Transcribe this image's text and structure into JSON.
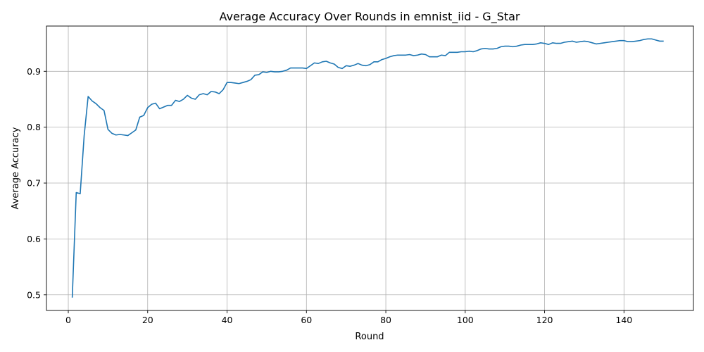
{
  "chart_data": {
    "type": "line",
    "title": "Average Accuracy Over Rounds in emnist_iid - G_Star",
    "xlabel": "Round",
    "ylabel": "Average Accuracy",
    "xlim": [
      -5.5,
      157.5
    ],
    "ylim": [
      0.472,
      0.981
    ],
    "x_ticks": [
      0,
      20,
      40,
      60,
      80,
      100,
      120,
      140
    ],
    "y_ticks": [
      0.5,
      0.6,
      0.7,
      0.8,
      0.9
    ],
    "y_tick_labels": [
      "0.5",
      "0.6",
      "0.7",
      "0.8",
      "0.9"
    ],
    "grid": true,
    "line_color": "#1f77b4",
    "series": [
      {
        "x": [
          1,
          2,
          3,
          4,
          5,
          6,
          7,
          8,
          9,
          10,
          11,
          12,
          13,
          14,
          15,
          16,
          17,
          18,
          19,
          20,
          21,
          22,
          23,
          24,
          25,
          26,
          27,
          28,
          29,
          30,
          31,
          32,
          33,
          34,
          35,
          36,
          37,
          38,
          39,
          40,
          41,
          42,
          43,
          44,
          45,
          46,
          47,
          48,
          49,
          50,
          51,
          52,
          53,
          54,
          55,
          56,
          57,
          58,
          59,
          60,
          61,
          62,
          63,
          64,
          65,
          66,
          67,
          68,
          69,
          70,
          71,
          72,
          73,
          74,
          75,
          76,
          77,
          78,
          79,
          80,
          81,
          82,
          83,
          84,
          85,
          86,
          87,
          88,
          89,
          90,
          91,
          92,
          93,
          94,
          95,
          96,
          97,
          98,
          99,
          100,
          101,
          102,
          103,
          104,
          105,
          106,
          107,
          108,
          109,
          110,
          111,
          112,
          113,
          114,
          115,
          116,
          117,
          118,
          119,
          120,
          121,
          122,
          123,
          124,
          125,
          126,
          127,
          128,
          129,
          130,
          131,
          132,
          133,
          134,
          135,
          136,
          137,
          138,
          139,
          140,
          141,
          142,
          143,
          144,
          145,
          146,
          147,
          148,
          149,
          150
        ],
        "y": [
          0.495,
          0.683,
          0.681,
          0.785,
          0.855,
          0.847,
          0.842,
          0.835,
          0.83,
          0.796,
          0.789,
          0.786,
          0.787,
          0.786,
          0.785,
          0.79,
          0.795,
          0.818,
          0.821,
          0.835,
          0.841,
          0.843,
          0.833,
          0.836,
          0.839,
          0.839,
          0.848,
          0.846,
          0.85,
          0.857,
          0.852,
          0.85,
          0.858,
          0.86,
          0.858,
          0.864,
          0.863,
          0.86,
          0.867,
          0.88,
          0.88,
          0.879,
          0.878,
          0.88,
          0.882,
          0.885,
          0.893,
          0.894,
          0.899,
          0.898,
          0.9,
          0.899,
          0.899,
          0.9,
          0.902,
          0.906,
          0.906,
          0.906,
          0.906,
          0.905,
          0.91,
          0.915,
          0.914,
          0.917,
          0.918,
          0.915,
          0.913,
          0.907,
          0.905,
          0.91,
          0.909,
          0.911,
          0.914,
          0.911,
          0.91,
          0.912,
          0.917,
          0.917,
          0.921,
          0.923,
          0.926,
          0.928,
          0.929,
          0.929,
          0.929,
          0.93,
          0.928,
          0.929,
          0.931,
          0.93,
          0.926,
          0.926,
          0.926,
          0.929,
          0.928,
          0.934,
          0.934,
          0.934,
          0.935,
          0.935,
          0.936,
          0.935,
          0.937,
          0.94,
          0.941,
          0.94,
          0.94,
          0.941,
          0.944,
          0.945,
          0.945,
          0.944,
          0.945,
          0.947,
          0.948,
          0.948,
          0.948,
          0.949,
          0.951,
          0.95,
          0.948,
          0.951,
          0.95,
          0.95,
          0.952,
          0.953,
          0.954,
          0.952,
          0.953,
          0.954,
          0.953,
          0.951,
          0.949,
          0.95,
          0.951,
          0.952,
          0.953,
          0.954,
          0.955,
          0.955,
          0.953,
          0.953,
          0.954,
          0.955,
          0.957,
          0.958,
          0.958,
          0.956,
          0.954,
          0.954
        ]
      }
    ]
  }
}
